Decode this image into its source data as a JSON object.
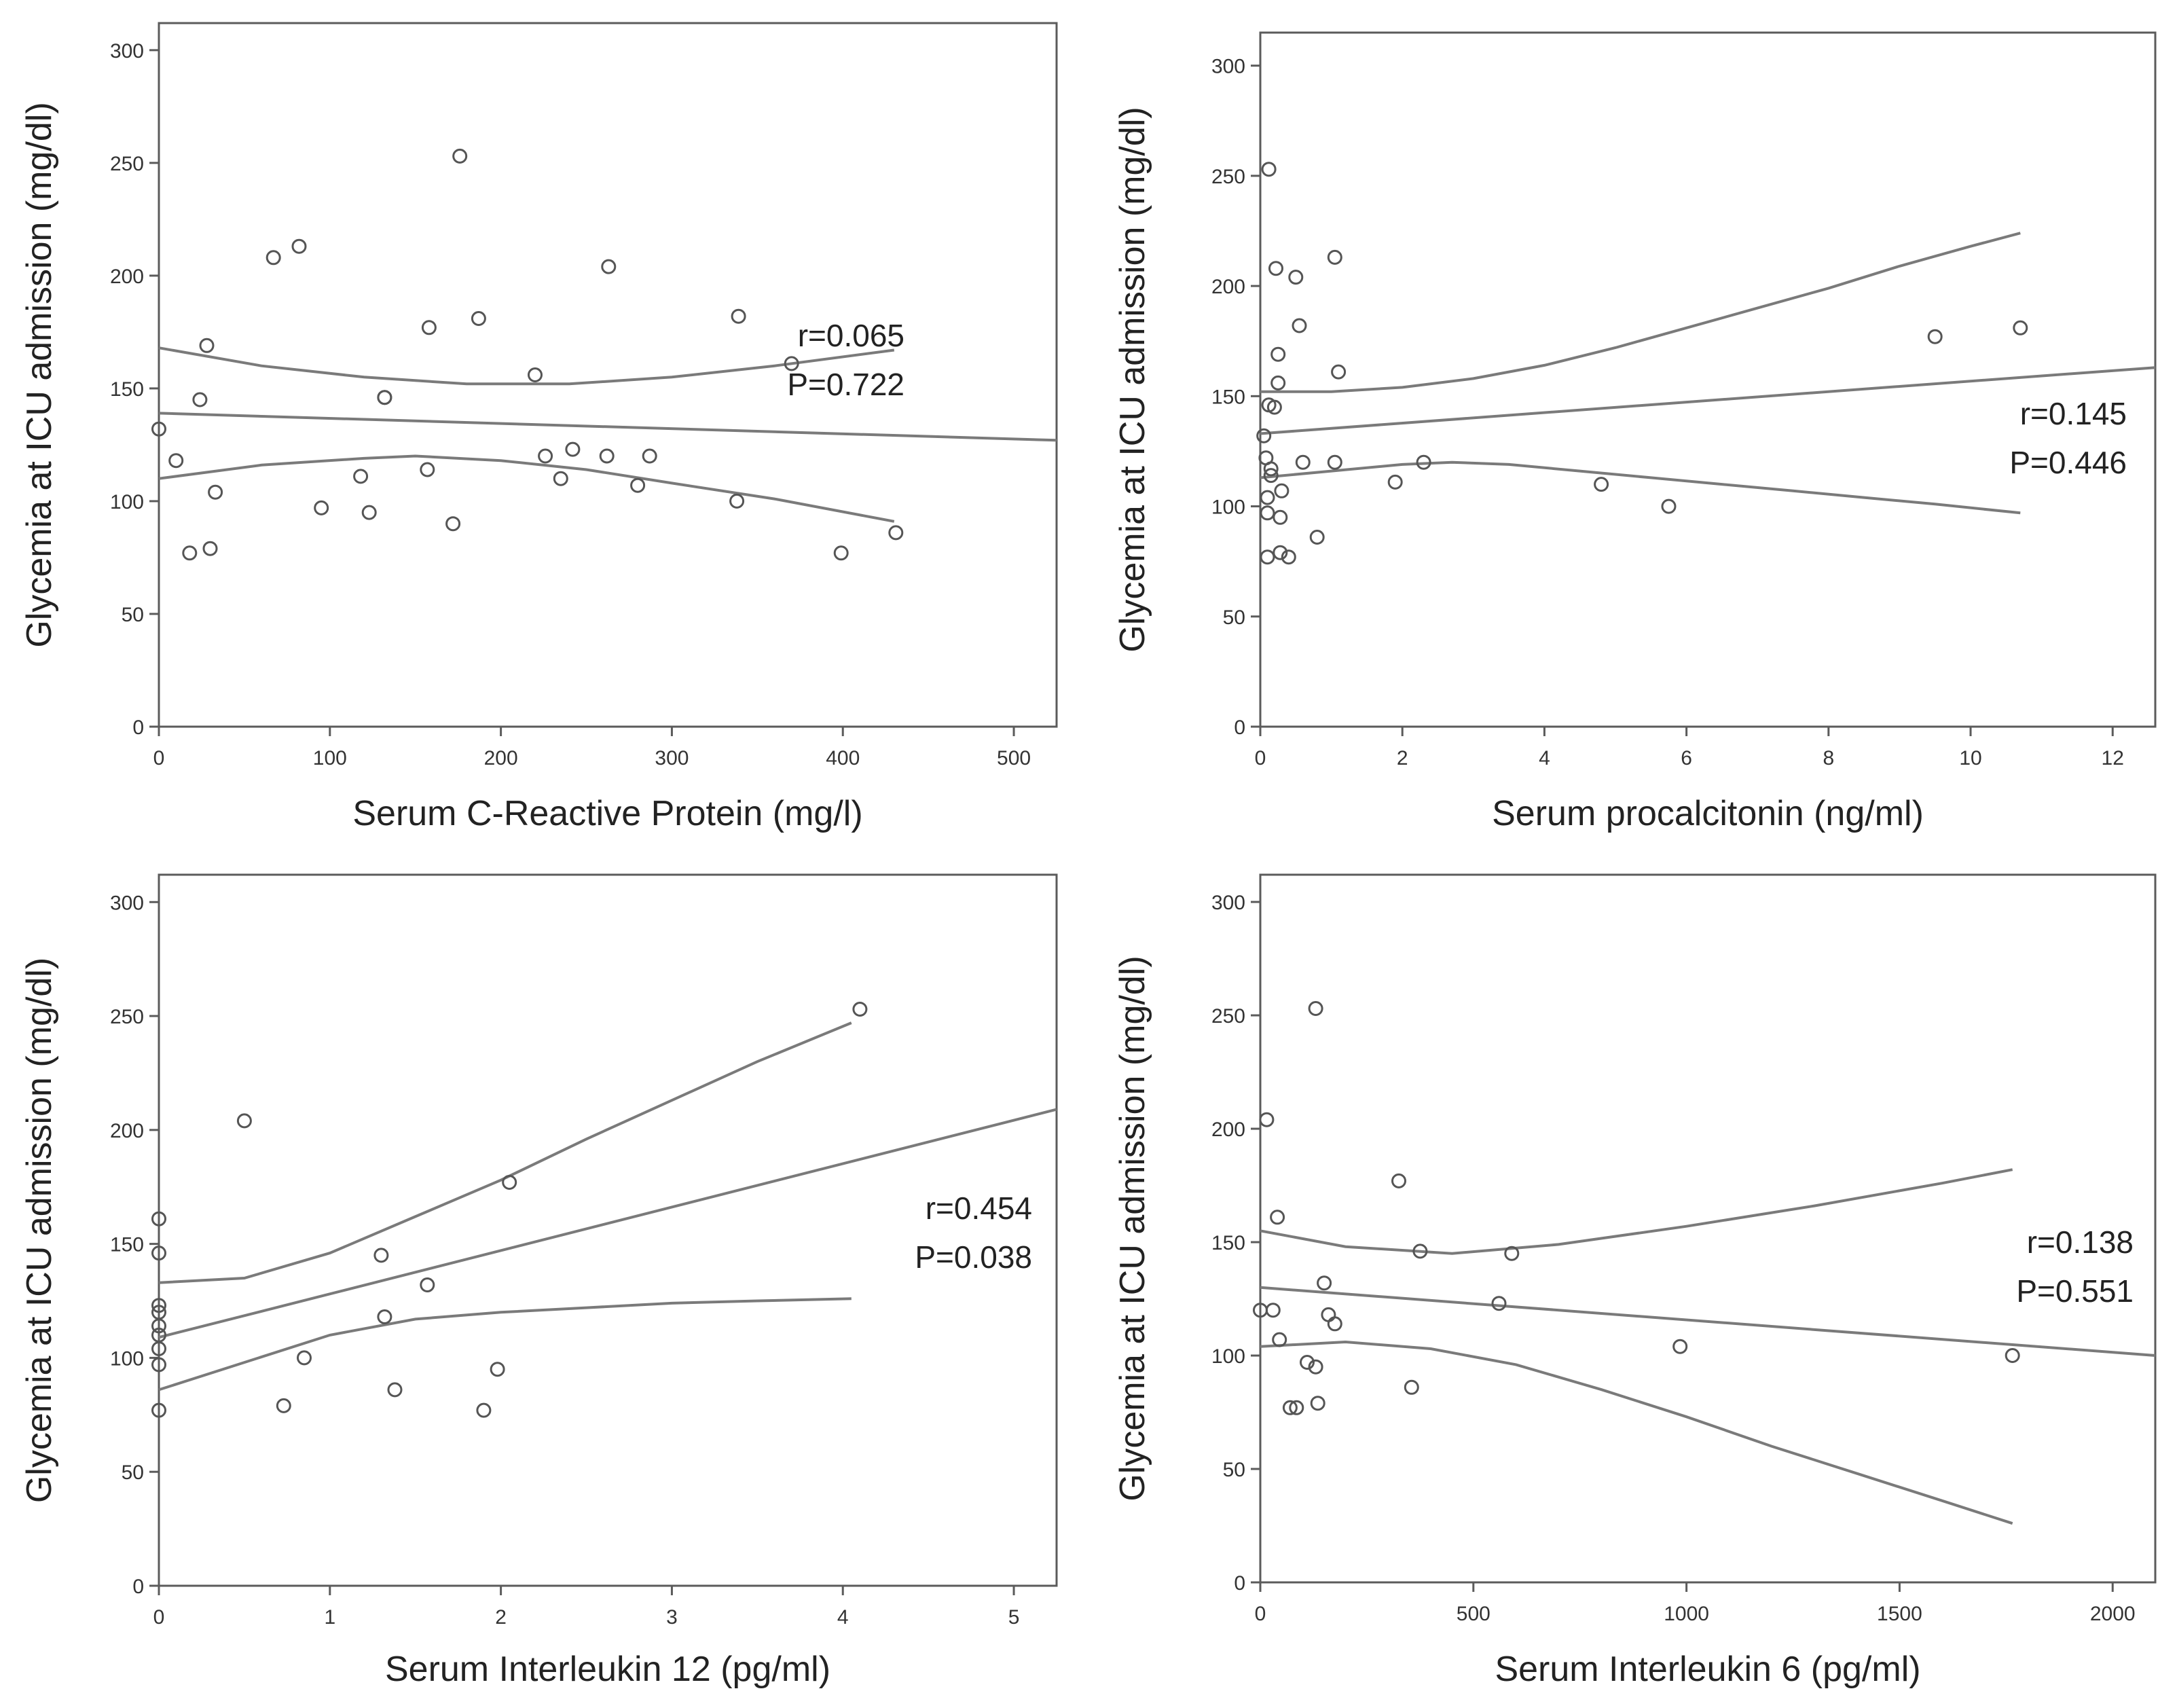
{
  "chart_data": [
    {
      "id": "crp",
      "type": "scatter",
      "xlabel": "Serum C-Reactive Protein (mg/l)",
      "ylabel": "Glycemia at ICU admission (mg/dl)",
      "xlim": [
        0,
        525
      ],
      "ylim": [
        0,
        312
      ],
      "xticks": [
        0,
        100,
        200,
        300,
        400,
        500
      ],
      "yticks": [
        0,
        50,
        100,
        150,
        200,
        250,
        300
      ],
      "stats": [
        "r=0.065",
        "P=0.722"
      ],
      "points": [
        [
          0,
          132
        ],
        [
          10,
          118
        ],
        [
          18,
          77
        ],
        [
          24,
          145
        ],
        [
          28,
          169
        ],
        [
          30,
          79
        ],
        [
          33,
          104
        ],
        [
          67,
          208
        ],
        [
          82,
          213
        ],
        [
          95,
          97
        ],
        [
          118,
          111
        ],
        [
          123,
          95
        ],
        [
          132,
          146
        ],
        [
          132,
          146
        ],
        [
          157,
          114
        ],
        [
          158,
          177
        ],
        [
          172,
          90
        ],
        [
          176,
          253
        ],
        [
          187,
          181
        ],
        [
          220,
          156
        ],
        [
          226,
          120
        ],
        [
          235,
          110
        ],
        [
          242,
          123
        ],
        [
          262,
          120
        ],
        [
          263,
          204
        ],
        [
          280,
          107
        ],
        [
          287,
          120
        ],
        [
          338,
          100
        ],
        [
          339,
          182
        ],
        [
          370,
          161
        ],
        [
          399,
          77
        ],
        [
          431,
          86
        ]
      ],
      "fit": [
        [
          0,
          139
        ],
        [
          525,
          127
        ]
      ],
      "band_upper": [
        [
          0,
          168
        ],
        [
          60,
          160
        ],
        [
          120,
          155
        ],
        [
          180,
          152
        ],
        [
          240,
          152
        ],
        [
          300,
          155
        ],
        [
          360,
          160
        ],
        [
          430,
          167
        ]
      ],
      "band_lower": [
        [
          0,
          110
        ],
        [
          60,
          116
        ],
        [
          120,
          119
        ],
        [
          150,
          120
        ],
        [
          200,
          118
        ],
        [
          250,
          114
        ],
        [
          300,
          108
        ],
        [
          360,
          101
        ],
        [
          430,
          91
        ]
      ]
    },
    {
      "id": "pct",
      "type": "scatter",
      "xlabel": "Serum procalcitonin (ng/ml)",
      "ylabel": "Glycemia at ICU admission (mg/dl)",
      "xlim": [
        0,
        12.6
      ],
      "ylim": [
        0,
        315
      ],
      "xticks": [
        0,
        2,
        4,
        6,
        8,
        10,
        12
      ],
      "yticks": [
        0,
        50,
        100,
        150,
        200,
        250,
        300
      ],
      "stats": [
        "r=0.145",
        "P=0.446"
      ],
      "points": [
        [
          0.05,
          132
        ],
        [
          0.08,
          122
        ],
        [
          0.1,
          104
        ],
        [
          0.1,
          97
        ],
        [
          0.1,
          77
        ],
        [
          0.12,
          253
        ],
        [
          0.12,
          146
        ],
        [
          0.15,
          117
        ],
        [
          0.15,
          114
        ],
        [
          0.2,
          145
        ],
        [
          0.22,
          208
        ],
        [
          0.25,
          169
        ],
        [
          0.25,
          156
        ],
        [
          0.28,
          95
        ],
        [
          0.28,
          79
        ],
        [
          0.3,
          107
        ],
        [
          0.4,
          77
        ],
        [
          0.5,
          204
        ],
        [
          0.55,
          182
        ],
        [
          0.6,
          120
        ],
        [
          0.8,
          86
        ],
        [
          1.05,
          120
        ],
        [
          1.05,
          213
        ],
        [
          1.1,
          161
        ],
        [
          1.9,
          111
        ],
        [
          2.3,
          120
        ],
        [
          4.8,
          110
        ],
        [
          5.75,
          100
        ],
        [
          9.5,
          177
        ],
        [
          10.7,
          181
        ]
      ],
      "fit": [
        [
          0,
          133
        ],
        [
          12.6,
          163
        ]
      ],
      "band_upper": [
        [
          0,
          152
        ],
        [
          1,
          152
        ],
        [
          2,
          154
        ],
        [
          3,
          158
        ],
        [
          4,
          164
        ],
        [
          5,
          172
        ],
        [
          6,
          181
        ],
        [
          7,
          190
        ],
        [
          8,
          199
        ],
        [
          9,
          209
        ],
        [
          10,
          218
        ],
        [
          10.7,
          224
        ]
      ],
      "band_lower": [
        [
          0,
          113
        ],
        [
          1,
          116
        ],
        [
          2,
          119
        ],
        [
          2.7,
          120
        ],
        [
          3.5,
          119
        ],
        [
          4.5,
          116
        ],
        [
          5.5,
          113
        ],
        [
          6.5,
          110
        ],
        [
          7.5,
          107
        ],
        [
          8.5,
          104
        ],
        [
          9.5,
          101
        ],
        [
          10.7,
          97
        ]
      ]
    },
    {
      "id": "il12",
      "type": "scatter",
      "xlabel": "Serum Interleukin 12 (pg/ml)",
      "ylabel": "Glycemia at ICU admission (mg/dl)",
      "xlim": [
        0,
        5.25
      ],
      "ylim": [
        0,
        312
      ],
      "xticks": [
        0,
        1,
        2,
        3,
        4,
        5
      ],
      "yticks": [
        0,
        50,
        100,
        150,
        200,
        250,
        300
      ],
      "stats": [
        "r=0.454",
        "P=0.038"
      ],
      "points": [
        [
          0,
          161
        ],
        [
          0,
          146
        ],
        [
          0,
          123
        ],
        [
          0,
          120
        ],
        [
          0,
          114
        ],
        [
          0,
          110
        ],
        [
          0,
          104
        ],
        [
          0,
          97
        ],
        [
          0,
          77
        ],
        [
          0.5,
          204
        ],
        [
          0.73,
          79
        ],
        [
          0.85,
          100
        ],
        [
          1.3,
          145
        ],
        [
          1.32,
          118
        ],
        [
          1.38,
          86
        ],
        [
          1.57,
          132
        ],
        [
          1.9,
          77
        ],
        [
          1.98,
          95
        ],
        [
          2.05,
          177
        ],
        [
          4.1,
          253
        ]
      ],
      "fit": [
        [
          0,
          109
        ],
        [
          5.25,
          209
        ]
      ],
      "band_upper": [
        [
          0,
          133
        ],
        [
          0.5,
          135
        ],
        [
          1,
          146
        ],
        [
          1.5,
          162
        ],
        [
          2,
          178
        ],
        [
          2.5,
          196
        ],
        [
          3,
          213
        ],
        [
          3.5,
          230
        ],
        [
          4.05,
          247
        ]
      ],
      "band_lower": [
        [
          0,
          86
        ],
        [
          0.5,
          98
        ],
        [
          1,
          110
        ],
        [
          1.5,
          117
        ],
        [
          2,
          120
        ],
        [
          2.5,
          122
        ],
        [
          3,
          124
        ],
        [
          3.5,
          125
        ],
        [
          4.05,
          126
        ]
      ]
    },
    {
      "id": "il6",
      "type": "scatter",
      "xlabel": "Serum Interleukin 6 (pg/ml)",
      "ylabel": "Glycemia at ICU admission (mg/dl)",
      "xlim": [
        0,
        2100
      ],
      "ylim": [
        0,
        312
      ],
      "xticks": [
        0,
        500,
        1000,
        1500,
        2000
      ],
      "yticks": [
        0,
        50,
        100,
        150,
        200,
        250,
        300
      ],
      "stats": [
        "r=0.138",
        "P=0.551"
      ],
      "points": [
        [
          0,
          120
        ],
        [
          15,
          204
        ],
        [
          30,
          120
        ],
        [
          40,
          161
        ],
        [
          45,
          107
        ],
        [
          70,
          77
        ],
        [
          85,
          77
        ],
        [
          110,
          97
        ],
        [
          130,
          253
        ],
        [
          130,
          95
        ],
        [
          135,
          79
        ],
        [
          150,
          132
        ],
        [
          160,
          118
        ],
        [
          175,
          114
        ],
        [
          325,
          177
        ],
        [
          355,
          86
        ],
        [
          375,
          146
        ],
        [
          560,
          123
        ],
        [
          590,
          145
        ],
        [
          985,
          104
        ],
        [
          1765,
          100
        ]
      ],
      "fit": [
        [
          0,
          130
        ],
        [
          2100,
          100
        ]
      ],
      "band_upper": [
        [
          0,
          155
        ],
        [
          200,
          148
        ],
        [
          450,
          145
        ],
        [
          700,
          149
        ],
        [
          1000,
          157
        ],
        [
          1300,
          166
        ],
        [
          1600,
          176
        ],
        [
          1765,
          182
        ]
      ],
      "band_lower": [
        [
          0,
          104
        ],
        [
          200,
          106
        ],
        [
          400,
          103
        ],
        [
          600,
          96
        ],
        [
          800,
          85
        ],
        [
          1000,
          73
        ],
        [
          1200,
          60
        ],
        [
          1400,
          48
        ],
        [
          1600,
          36
        ],
        [
          1765,
          26
        ]
      ]
    }
  ]
}
